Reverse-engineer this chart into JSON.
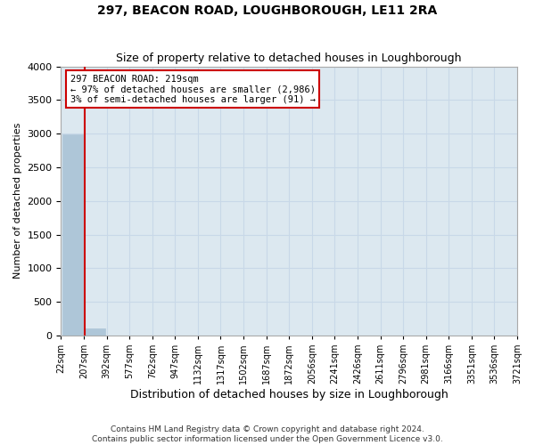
{
  "title": "297, BEACON ROAD, LOUGHBOROUGH, LE11 2RA",
  "subtitle": "Size of property relative to detached houses in Loughborough",
  "xlabel": "Distribution of detached houses by size in Loughborough",
  "ylabel": "Number of detached properties",
  "footer1": "Contains HM Land Registry data © Crown copyright and database right 2024.",
  "footer2": "Contains public sector information licensed under the Open Government Licence v3.0.",
  "bin_labels": [
    "22sqm",
    "207sqm",
    "392sqm",
    "577sqm",
    "762sqm",
    "947sqm",
    "1132sqm",
    "1317sqm",
    "1502sqm",
    "1687sqm",
    "1872sqm",
    "2056sqm",
    "2241sqm",
    "2426sqm",
    "2611sqm",
    "2796sqm",
    "2981sqm",
    "3166sqm",
    "3351sqm",
    "3536sqm",
    "3721sqm"
  ],
  "bar_heights": [
    2986,
    100,
    5,
    2,
    1,
    1,
    0,
    0,
    0,
    0,
    0,
    0,
    0,
    0,
    0,
    0,
    0,
    0,
    0,
    0
  ],
  "bar_color": "#aec6d8",
  "bar_edge_color": "#aec6d8",
  "grid_color": "#c8d8e8",
  "background_color": "#dce8f0",
  "property_line_color": "#cc0000",
  "annotation_text": "297 BEACON ROAD: 219sqm\n← 97% of detached houses are smaller (2,986)\n3% of semi-detached houses are larger (91) →",
  "annotation_box_color": "#ffffff",
  "annotation_box_edge": "#cc0000",
  "ylim": [
    0,
    4000
  ],
  "yticks": [
    0,
    500,
    1000,
    1500,
    2000,
    2500,
    3000,
    3500,
    4000
  ]
}
